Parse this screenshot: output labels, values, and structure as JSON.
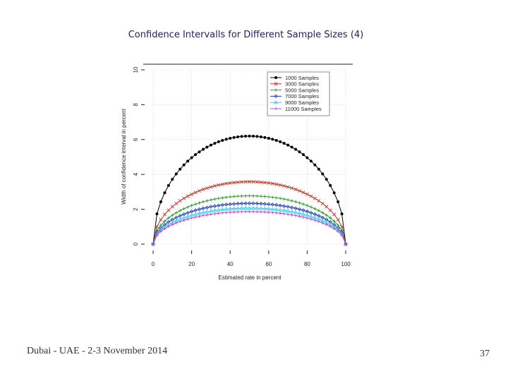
{
  "slide": {
    "title": "Confidence Intervalls for Different Sample Sizes (4)",
    "footer": "Dubai - UAE - 2-3 November 2014",
    "page_number": "37"
  },
  "chart_data": {
    "type": "line",
    "title": "",
    "xlabel": "Estimated rate in percent",
    "ylabel": "Width of confidence interval in percent",
    "xlim": [
      0,
      100
    ],
    "ylim": [
      0,
      10
    ],
    "x_ticks": [
      "0",
      "20",
      "40",
      "60",
      "80",
      "100"
    ],
    "y_ticks": [
      "0",
      "2",
      "4",
      "6",
      "8",
      "10"
    ],
    "grid": true,
    "legend_position": "top-right",
    "series": [
      {
        "name": "1000 Samples",
        "color": "#000000",
        "marker": "circle",
        "peak": 6.2
      },
      {
        "name": "3000 Samples",
        "color": "#c0392b",
        "marker": "cross",
        "peak": 3.58
      },
      {
        "name": "5000 Samples",
        "color": "#2ca02c",
        "marker": "plus",
        "peak": 2.77
      },
      {
        "name": "7000 Samples",
        "color": "#1f3fbf",
        "marker": "diamond",
        "peak": 2.34
      },
      {
        "name": "9000 Samples",
        "color": "#33ccee",
        "marker": "triangle",
        "peak": 2.07
      },
      {
        "name": "11000 Samples",
        "color": "#cc44cc",
        "marker": "plus",
        "peak": 1.87
      }
    ]
  }
}
